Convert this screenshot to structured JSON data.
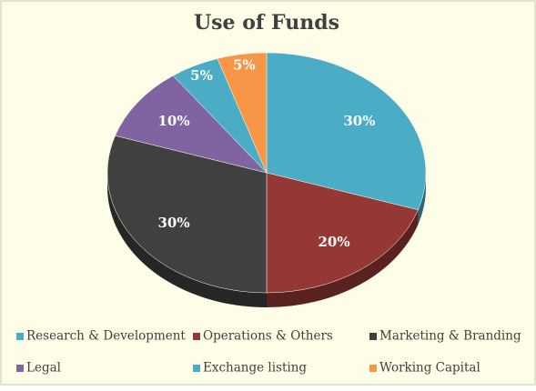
{
  "chart_data": {
    "type": "pie",
    "title": "Use of Funds",
    "categories": [
      "Research & Development",
      "Operations & Others",
      "Marketing & Branding",
      "Legal",
      "Exchange listing",
      "Working Capital"
    ],
    "values": [
      30,
      20,
      30,
      10,
      5,
      5
    ],
    "value_labels": [
      "30%",
      "20%",
      "30%",
      "10%",
      "5%",
      "5%"
    ],
    "colors": [
      "#4bacc6",
      "#953735",
      "#404040",
      "#8064a2",
      "#4bacc6",
      "#f79646"
    ],
    "legend": "bottom"
  }
}
